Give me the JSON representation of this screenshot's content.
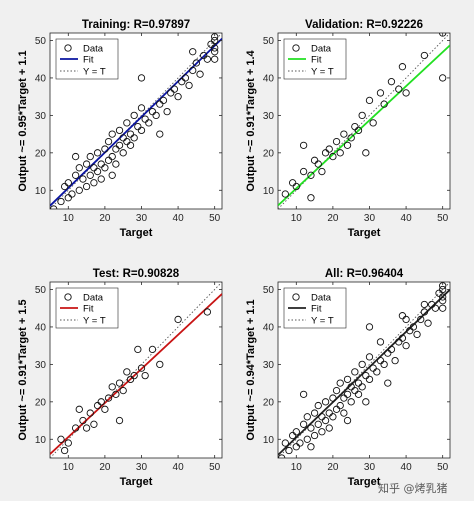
{
  "figure": {
    "background": "#f0f0f0",
    "watermark": "知乎 @烤乳猪"
  },
  "chart_data": [
    {
      "type": "scatter",
      "title": "Training: R=0.97897",
      "xlabel": "Target",
      "ylabel": "Output ~= 0.95*Target + 1.1",
      "xlim": [
        5,
        52
      ],
      "ylim": [
        5,
        52
      ],
      "xticks": [
        10,
        20,
        30,
        40,
        50
      ],
      "yticks": [
        10,
        20,
        30,
        40,
        50
      ],
      "fit": {
        "slope": 0.95,
        "intercept": 1.1,
        "color": "#0a14a0"
      },
      "legend": {
        "position": "top-left",
        "entries": [
          "Data",
          "Fit",
          "Y = T"
        ]
      },
      "grid": false,
      "points": [
        [
          6,
          5
        ],
        [
          8,
          7
        ],
        [
          9,
          11
        ],
        [
          10,
          8
        ],
        [
          10,
          12
        ],
        [
          11,
          9
        ],
        [
          12,
          14
        ],
        [
          13,
          10
        ],
        [
          13,
          16
        ],
        [
          14,
          13
        ],
        [
          15,
          11
        ],
        [
          15,
          17
        ],
        [
          16,
          14
        ],
        [
          16,
          19
        ],
        [
          17,
          12
        ],
        [
          17,
          16
        ],
        [
          18,
          15
        ],
        [
          18,
          20
        ],
        [
          19,
          13
        ],
        [
          19,
          17
        ],
        [
          20,
          16
        ],
        [
          20,
          21
        ],
        [
          21,
          18
        ],
        [
          21,
          23
        ],
        [
          22,
          19
        ],
        [
          22,
          25
        ],
        [
          23,
          21
        ],
        [
          23,
          17
        ],
        [
          24,
          22
        ],
        [
          24,
          26
        ],
        [
          25,
          20
        ],
        [
          25,
          24
        ],
        [
          26,
          23
        ],
        [
          26,
          28
        ],
        [
          27,
          22
        ],
        [
          27,
          25
        ],
        [
          28,
          24
        ],
        [
          28,
          30
        ],
        [
          29,
          27
        ],
        [
          30,
          26
        ],
        [
          30,
          32
        ],
        [
          31,
          29
        ],
        [
          32,
          28
        ],
        [
          33,
          31
        ],
        [
          34,
          30
        ],
        [
          35,
          33
        ],
        [
          36,
          34
        ],
        [
          37,
          31
        ],
        [
          38,
          36
        ],
        [
          39,
          37
        ],
        [
          40,
          35
        ],
        [
          41,
          39
        ],
        [
          42,
          40
        ],
        [
          43,
          38
        ],
        [
          44,
          42
        ],
        [
          45,
          44
        ],
        [
          46,
          41
        ],
        [
          47,
          46
        ],
        [
          48,
          45
        ],
        [
          49,
          49
        ],
        [
          50,
          47
        ],
        [
          50,
          50
        ],
        [
          50,
          51
        ],
        [
          50,
          48
        ],
        [
          50,
          45
        ],
        [
          30,
          40
        ],
        [
          35,
          25
        ],
        [
          44,
          47
        ],
        [
          12,
          19
        ],
        [
          22,
          14
        ]
      ]
    },
    {
      "type": "scatter",
      "title": "Validation: R=0.92226",
      "xlabel": "Target",
      "ylabel": "Output ~= 0.91*Target + 1.4",
      "xlim": [
        5,
        52
      ],
      "ylim": [
        5,
        52
      ],
      "xticks": [
        10,
        20,
        30,
        40,
        50
      ],
      "yticks": [
        10,
        20,
        30,
        40,
        50
      ],
      "fit": {
        "slope": 0.91,
        "intercept": 1.4,
        "color": "#22e022"
      },
      "legend": {
        "position": "top-left",
        "entries": [
          "Data",
          "Fit",
          "Y = T"
        ]
      },
      "grid": false,
      "points": [
        [
          7,
          9
        ],
        [
          9,
          12
        ],
        [
          10,
          11
        ],
        [
          12,
          15
        ],
        [
          14,
          14
        ],
        [
          15,
          18
        ],
        [
          16,
          17
        ],
        [
          17,
          15
        ],
        [
          18,
          20
        ],
        [
          19,
          21
        ],
        [
          20,
          19
        ],
        [
          21,
          23
        ],
        [
          22,
          20
        ],
        [
          23,
          25
        ],
        [
          24,
          22
        ],
        [
          25,
          24
        ],
        [
          26,
          27
        ],
        [
          27,
          26
        ],
        [
          28,
          30
        ],
        [
          30,
          34
        ],
        [
          31,
          28
        ],
        [
          33,
          36
        ],
        [
          34,
          33
        ],
        [
          36,
          39
        ],
        [
          38,
          37
        ],
        [
          40,
          36
        ],
        [
          45,
          46
        ],
        [
          50,
          40
        ],
        [
          50,
          52
        ],
        [
          14,
          8
        ],
        [
          29,
          20
        ],
        [
          39,
          43
        ],
        [
          12,
          22
        ]
      ]
    },
    {
      "type": "scatter",
      "title": "Test: R=0.90828",
      "xlabel": "Target",
      "ylabel": "Output ~= 0.91*Target + 1.5",
      "xlim": [
        5,
        52
      ],
      "ylim": [
        5,
        52
      ],
      "xticks": [
        10,
        20,
        30,
        40,
        50
      ],
      "yticks": [
        10,
        20,
        30,
        40,
        50
      ],
      "fit": {
        "slope": 0.91,
        "intercept": 1.5,
        "color": "#c81414"
      },
      "legend": {
        "position": "top-left",
        "entries": [
          "Data",
          "Fit",
          "Y = T"
        ]
      },
      "grid": false,
      "points": [
        [
          8,
          10
        ],
        [
          9,
          7
        ],
        [
          10,
          9
        ],
        [
          12,
          13
        ],
        [
          14,
          15
        ],
        [
          15,
          13
        ],
        [
          16,
          17
        ],
        [
          17,
          14
        ],
        [
          18,
          19
        ],
        [
          19,
          20
        ],
        [
          20,
          18
        ],
        [
          21,
          21
        ],
        [
          22,
          24
        ],
        [
          23,
          22
        ],
        [
          24,
          25
        ],
        [
          25,
          23
        ],
        [
          26,
          28
        ],
        [
          27,
          26
        ],
        [
          28,
          27
        ],
        [
          30,
          29
        ],
        [
          31,
          27
        ],
        [
          33,
          34
        ],
        [
          35,
          30
        ],
        [
          40,
          42
        ],
        [
          48,
          44
        ],
        [
          13,
          18
        ],
        [
          24,
          15
        ],
        [
          29,
          34
        ]
      ]
    },
    {
      "type": "scatter",
      "title": "All: R=0.96404",
      "xlabel": "Target",
      "ylabel": "Output ~= 0.94*Target + 1.1",
      "xlim": [
        5,
        52
      ],
      "ylim": [
        5,
        52
      ],
      "xticks": [
        10,
        20,
        30,
        40,
        50
      ],
      "yticks": [
        10,
        20,
        30,
        40,
        50
      ],
      "fit": {
        "slope": 0.94,
        "intercept": 1.1,
        "color": "#222222"
      },
      "legend": {
        "position": "top-left",
        "entries": [
          "Data",
          "Fit",
          "Y = T"
        ]
      },
      "grid": false,
      "points": [
        [
          6,
          5
        ],
        [
          7,
          9
        ],
        [
          8,
          7
        ],
        [
          9,
          11
        ],
        [
          10,
          8
        ],
        [
          10,
          12
        ],
        [
          11,
          9
        ],
        [
          12,
          14
        ],
        [
          13,
          10
        ],
        [
          13,
          16
        ],
        [
          14,
          13
        ],
        [
          15,
          11
        ],
        [
          15,
          17
        ],
        [
          16,
          14
        ],
        [
          16,
          19
        ],
        [
          17,
          12
        ],
        [
          17,
          16
        ],
        [
          18,
          15
        ],
        [
          18,
          20
        ],
        [
          19,
          13
        ],
        [
          19,
          17
        ],
        [
          20,
          16
        ],
        [
          20,
          21
        ],
        [
          21,
          18
        ],
        [
          21,
          23
        ],
        [
          22,
          19
        ],
        [
          22,
          25
        ],
        [
          23,
          21
        ],
        [
          23,
          17
        ],
        [
          24,
          22
        ],
        [
          24,
          26
        ],
        [
          25,
          20
        ],
        [
          25,
          24
        ],
        [
          26,
          23
        ],
        [
          26,
          28
        ],
        [
          27,
          22
        ],
        [
          27,
          25
        ],
        [
          28,
          24
        ],
        [
          28,
          30
        ],
        [
          29,
          27
        ],
        [
          30,
          26
        ],
        [
          30,
          32
        ],
        [
          31,
          29
        ],
        [
          32,
          28
        ],
        [
          33,
          31
        ],
        [
          34,
          30
        ],
        [
          35,
          33
        ],
        [
          36,
          34
        ],
        [
          37,
          31
        ],
        [
          38,
          36
        ],
        [
          39,
          37
        ],
        [
          40,
          35
        ],
        [
          41,
          39
        ],
        [
          42,
          40
        ],
        [
          43,
          38
        ],
        [
          44,
          42
        ],
        [
          45,
          44
        ],
        [
          46,
          41
        ],
        [
          47,
          46
        ],
        [
          48,
          45
        ],
        [
          49,
          49
        ],
        [
          50,
          47
        ],
        [
          50,
          50
        ],
        [
          50,
          51
        ],
        [
          50,
          48
        ],
        [
          50,
          45
        ],
        [
          30,
          40
        ],
        [
          35,
          25
        ],
        [
          12,
          22
        ],
        [
          14,
          8
        ],
        [
          29,
          20
        ],
        [
          39,
          43
        ],
        [
          24,
          15
        ],
        [
          40,
          42
        ],
        [
          45,
          46
        ],
        [
          33,
          36
        ]
      ]
    }
  ]
}
